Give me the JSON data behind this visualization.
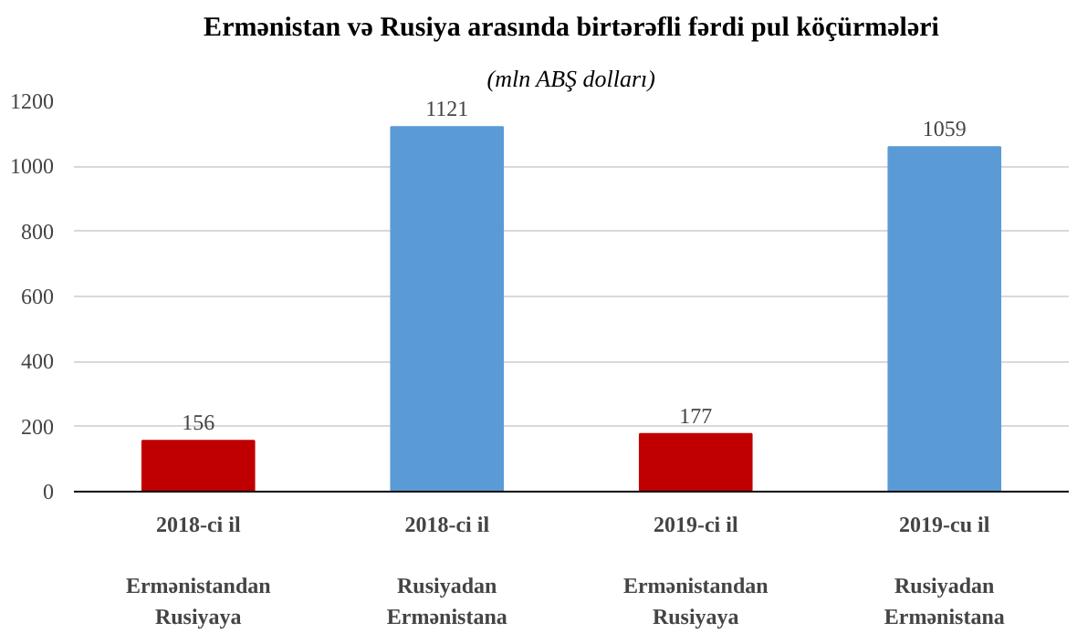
{
  "chart_data": {
    "type": "bar",
    "title": "Ermənistan və Rusiya arasında birtərəfli fərdi pul köçürmələri",
    "subtitle": "(mln ABŞ dolları)",
    "categories": [
      "2018-ci il\n\nErmənistandan\nRusiyaya",
      "2018-ci il\n\nRusiyadan\nErmənistana",
      "2019-ci il\n\nErmənistandan\nRusiyaya",
      "2019-cu il\n\nRusiyadan\nErmənistana"
    ],
    "values": [
      156,
      1121,
      177,
      1059
    ],
    "colors": [
      "#c00000",
      "#5b9bd5",
      "#c00000",
      "#5b9bd5"
    ],
    "ylim": [
      0,
      1200
    ],
    "yticks": [
      0,
      200,
      400,
      600,
      800,
      1000,
      1200
    ],
    "grid": "y",
    "data_labels": true
  }
}
